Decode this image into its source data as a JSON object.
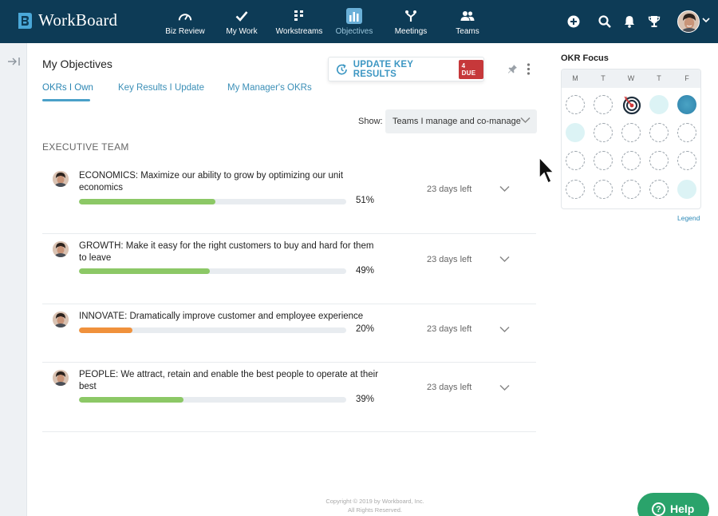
{
  "app": {
    "name": "WorkBoard"
  },
  "nav": [
    {
      "label": "Biz Review",
      "icon": "gauge-icon"
    },
    {
      "label": "My Work",
      "icon": "check-icon"
    },
    {
      "label": "Workstreams",
      "icon": "workstreams-icon"
    },
    {
      "label": "Objectives",
      "icon": "bar-chart-icon",
      "active": true
    },
    {
      "label": "Meetings",
      "icon": "meetings-icon"
    },
    {
      "label": "Teams",
      "icon": "people-icon"
    }
  ],
  "page": {
    "title": "My Objectives"
  },
  "tabs": [
    {
      "label": "OKRs I Own",
      "active": true
    },
    {
      "label": "Key Results I Update"
    },
    {
      "label": "My Manager's OKRs"
    }
  ],
  "update_button": {
    "label": "UPDATE KEY RESULTS",
    "badge": "4 DUE"
  },
  "filter": {
    "label": "Show:",
    "value": "Teams I manage and co-manage"
  },
  "section": {
    "title": "EXECUTIVE TEAM"
  },
  "objectives": [
    {
      "title": "ECONOMICS: Maximize our ability to grow by optimizing our unit economics",
      "progress": 51,
      "progress_label": "51%",
      "days_left": "23 days left",
      "color": "#8cc866"
    },
    {
      "title": "GROWTH: Make it easy for the right customers to buy and hard for them to leave",
      "progress": 49,
      "progress_label": "49%",
      "days_left": "23 days left",
      "color": "#8cc866"
    },
    {
      "title": "INNOVATE: Dramatically improve customer and employee experience",
      "progress": 20,
      "progress_label": "20%",
      "days_left": "23 days left",
      "color": "#f0913c"
    },
    {
      "title": "PEOPLE: We attract, retain and enable the best people to operate at their best",
      "progress": 39,
      "progress_label": "39%",
      "days_left": "23 days left",
      "color": "#8cc866"
    }
  ],
  "focus": {
    "title": "OKR Focus",
    "days": [
      "M",
      "T",
      "W",
      "T",
      "F"
    ],
    "legend": "Legend"
  },
  "footer": {
    "line1": "Copyright © 2019 by Workboard, Inc.",
    "line2": "All Rights Reserved."
  },
  "help": {
    "label": "Help"
  },
  "colors": {
    "topbar": "#0d3b56",
    "accent": "#3d97c3",
    "due": "#c6383a",
    "help": "#2aa36b"
  }
}
